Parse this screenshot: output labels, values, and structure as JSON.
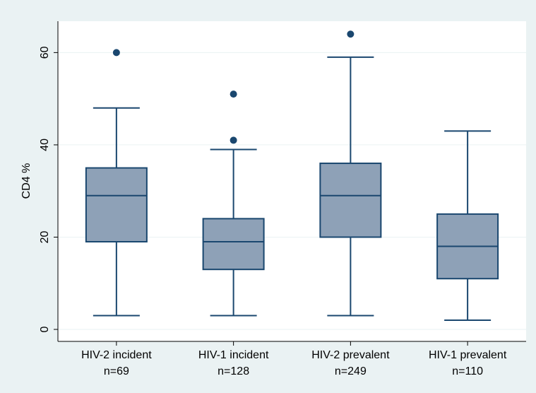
{
  "chart_data": {
    "type": "box",
    "y_label": "CD4 %",
    "categories": [
      [
        "HIV-2 incident",
        "n=69"
      ],
      [
        "HIV-1 incident",
        "n=128"
      ],
      [
        "HIV-2 prevalent",
        "n=249"
      ],
      [
        "HIV-1 prevalent",
        "n=110"
      ]
    ],
    "boxes": [
      {
        "low": 3,
        "q1": 19,
        "median": 29,
        "q3": 35,
        "high": 48,
        "outliers": [
          60
        ]
      },
      {
        "low": 3,
        "q1": 13,
        "median": 19,
        "q3": 24,
        "high": 39,
        "outliers": [
          41,
          51
        ]
      },
      {
        "low": 3,
        "q1": 20,
        "median": 29,
        "q3": 36,
        "high": 59,
        "outliers": [
          64
        ]
      },
      {
        "low": 2,
        "q1": 11,
        "median": 18,
        "q3": 25,
        "high": 43,
        "outliers": []
      }
    ],
    "color": "#8ea1b7",
    "line_color": "#1a476f",
    "ylim": [
      -2.6,
      66.8
    ],
    "yticks": [
      0,
      20,
      40,
      60
    ],
    "grid": true
  }
}
